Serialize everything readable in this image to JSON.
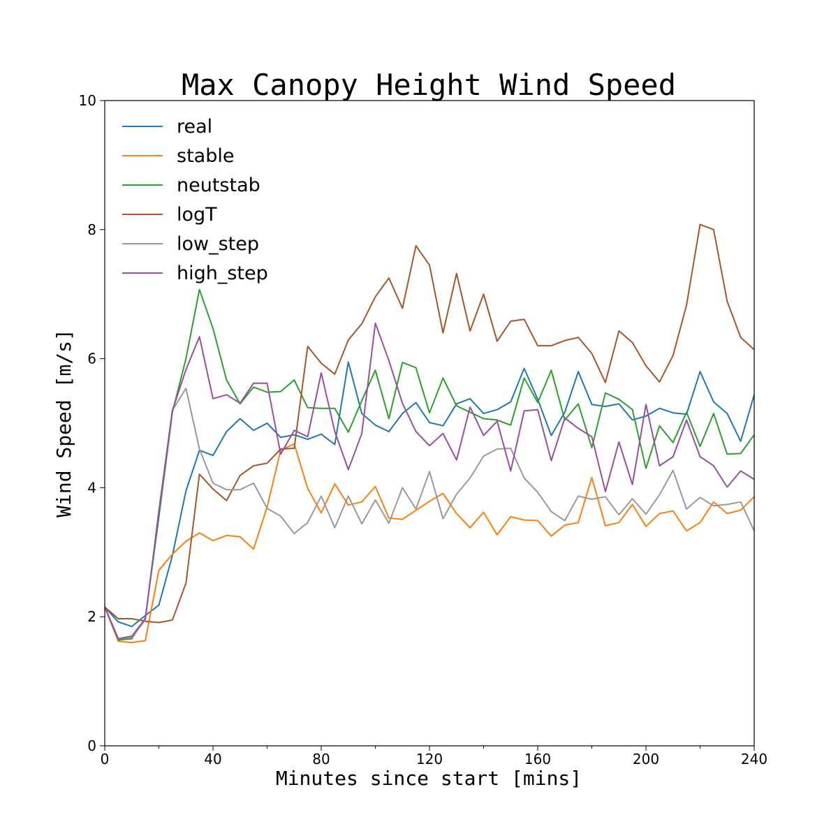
{
  "chart_data": {
    "type": "line",
    "title": "Max Canopy Height Wind Speed",
    "xlabel": "Minutes since start [mins]",
    "ylabel": "Wind Speed [m/s]",
    "xlim": [
      0,
      240
    ],
    "ylim": [
      0,
      10
    ],
    "xticks": [
      0,
      40,
      80,
      120,
      160,
      200,
      240
    ],
    "xminor": [
      20,
      60,
      100,
      140,
      180,
      220
    ],
    "yticks": [
      0,
      2,
      4,
      6,
      8,
      10
    ],
    "grid": false,
    "legend_position": "top-left",
    "x": [
      0,
      5,
      10,
      15,
      20,
      25,
      30,
      35,
      40,
      45,
      50,
      55,
      60,
      65,
      70,
      75,
      80,
      85,
      90,
      95,
      100,
      105,
      110,
      115,
      120,
      125,
      130,
      135,
      140,
      145,
      150,
      155,
      160,
      165,
      170,
      175,
      180,
      185,
      190,
      195,
      200,
      205,
      210,
      215,
      220,
      225,
      230,
      235,
      240
    ],
    "series": [
      {
        "name": "real",
        "color": "#1f77b4",
        "values": [
          2.15,
          1.92,
          1.85,
          2.02,
          2.18,
          2.95,
          3.95,
          4.58,
          4.5,
          4.87,
          5.07,
          4.89,
          5.0,
          4.78,
          4.82,
          4.75,
          4.83,
          4.67,
          5.95,
          5.15,
          4.97,
          4.87,
          5.15,
          5.32,
          5.01,
          4.96,
          5.3,
          5.38,
          5.15,
          5.21,
          5.33,
          5.85,
          5.37,
          4.81,
          5.17,
          5.8,
          5.29,
          5.26,
          5.3,
          5.05,
          5.11,
          5.23,
          5.16,
          5.14,
          5.8,
          5.33,
          5.15,
          4.72,
          5.44
        ]
      },
      {
        "name": "stable",
        "color": "#ff7f0e",
        "values": [
          2.15,
          1.62,
          1.6,
          1.63,
          2.72,
          2.97,
          3.17,
          3.3,
          3.18,
          3.26,
          3.24,
          3.05,
          3.7,
          4.58,
          4.68,
          3.99,
          3.61,
          4.06,
          3.73,
          3.78,
          4.02,
          3.53,
          3.51,
          3.65,
          3.79,
          3.91,
          3.6,
          3.38,
          3.62,
          3.27,
          3.55,
          3.5,
          3.49,
          3.25,
          3.42,
          3.46,
          4.16,
          3.41,
          3.46,
          3.74,
          3.4,
          3.6,
          3.64,
          3.33,
          3.46,
          3.78,
          3.6,
          3.65,
          3.86
        ]
      },
      {
        "name": "neutstab",
        "color": "#2ca02c",
        "values": [
          2.15,
          1.64,
          1.66,
          1.98,
          3.54,
          5.17,
          6.0,
          7.07,
          6.47,
          5.67,
          5.3,
          5.56,
          5.48,
          5.49,
          5.67,
          5.24,
          5.23,
          5.23,
          4.86,
          5.35,
          5.82,
          5.07,
          5.94,
          5.86,
          5.16,
          5.7,
          5.27,
          5.17,
          5.07,
          5.05,
          4.97,
          5.7,
          5.32,
          5.82,
          5.05,
          5.3,
          4.62,
          5.47,
          5.37,
          5.21,
          4.3,
          4.96,
          4.7,
          5.17,
          4.64,
          5.15,
          4.52,
          4.53,
          4.82
        ]
      },
      {
        "name": "logT",
        "color": "#a65628",
        "values": [
          2.15,
          1.97,
          1.97,
          1.93,
          1.91,
          1.95,
          2.52,
          4.21,
          3.98,
          3.8,
          4.19,
          4.34,
          4.38,
          4.6,
          4.61,
          6.19,
          5.93,
          5.76,
          6.29,
          6.54,
          6.96,
          7.25,
          6.78,
          7.75,
          7.45,
          6.4,
          7.32,
          6.43,
          7.0,
          6.27,
          6.58,
          6.61,
          6.2,
          6.2,
          6.28,
          6.33,
          6.08,
          5.63,
          6.43,
          6.25,
          5.89,
          5.64,
          6.05,
          6.83,
          8.08,
          8.0,
          6.89,
          6.33,
          6.14
        ]
      },
      {
        "name": "low_step",
        "color": "#999999",
        "values": [
          2.15,
          1.66,
          1.68,
          1.95,
          3.65,
          5.2,
          5.54,
          4.6,
          4.07,
          3.97,
          3.97,
          4.07,
          3.68,
          3.56,
          3.29,
          3.46,
          3.87,
          3.38,
          3.87,
          3.44,
          3.81,
          3.45,
          4.0,
          3.67,
          4.25,
          3.52,
          3.9,
          4.15,
          4.49,
          4.6,
          4.61,
          4.15,
          3.93,
          3.63,
          3.49,
          3.87,
          3.82,
          3.86,
          3.58,
          3.83,
          3.59,
          3.89,
          4.27,
          3.67,
          3.85,
          3.72,
          3.74,
          3.78,
          3.33
        ]
      },
      {
        "name": "high_step",
        "color": "#984ea3",
        "values": [
          2.15,
          1.66,
          1.7,
          1.97,
          3.62,
          5.2,
          5.83,
          6.34,
          5.38,
          5.44,
          5.31,
          5.62,
          5.62,
          4.52,
          4.89,
          4.79,
          5.78,
          4.87,
          4.28,
          4.84,
          6.55,
          5.97,
          5.31,
          4.87,
          4.65,
          4.84,
          4.43,
          5.25,
          4.81,
          5.03,
          4.26,
          5.19,
          5.21,
          4.42,
          5.08,
          4.92,
          4.79,
          3.94,
          4.71,
          4.05,
          5.29,
          4.34,
          4.48,
          5.05,
          4.48,
          4.34,
          4.01,
          4.26,
          4.13
        ]
      }
    ]
  }
}
